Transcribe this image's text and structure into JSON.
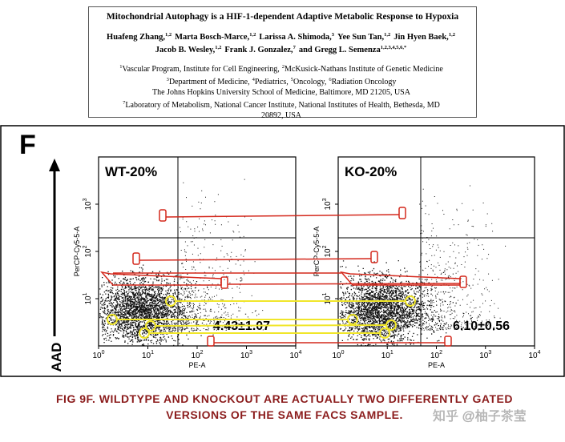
{
  "header": {
    "title": "Mitochondrial Autophagy is a HIF-1-dependent Adaptive Metabolic Response to Hypoxia",
    "authors": [
      [
        {
          "text": "Huafeng Zhang,",
          "sup": "1,2"
        },
        {
          "text": "Marta Bosch-Marce,",
          "sup": "1,2"
        },
        {
          "text": "Larissa A. Shimoda,",
          "sup": "3"
        },
        {
          "text": "Yee Sun Tan,",
          "sup": "1,2"
        },
        {
          "text": "Jin Hyen Baek,",
          "sup": "1,2"
        }
      ],
      [
        {
          "text": "Jacob B. Wesley,",
          "sup": "1,2"
        },
        {
          "text": "Frank J. Gonzalez,",
          "sup": "7"
        },
        {
          "text": "and Gregg L. Semenza",
          "sup": "1,2,3,4,5,6,*"
        }
      ]
    ],
    "affiliations": [
      [
        {
          "sup": "1",
          "text": "Vascular Program, Institute for Cell Engineering,"
        },
        {
          "sup": "2",
          "text": "McKusick-Nathans Institute of Genetic Medicine"
        }
      ],
      [
        {
          "sup": "3",
          "text": "Department of Medicine,"
        },
        {
          "sup": "4",
          "text": "Pediatrics,"
        },
        {
          "sup": "5",
          "text": "Oncology,"
        },
        {
          "sup": "6",
          "text": "Radiation Oncology"
        }
      ],
      [
        {
          "text": "The Johns Hopkins University School of Medicine, Baltimore, MD 21205, USA"
        }
      ],
      [
        {
          "sup": "7",
          "text": "Laboratory of Metabolism, National Cancer Institute, National Institutes of Health, Bethesda, MD"
        }
      ],
      [
        {
          "text": "20892, USA"
        }
      ]
    ]
  },
  "figure": {
    "panel": "F",
    "y_axis_label": "AAD",
    "plots": [
      {
        "label": "WT-20%",
        "value": "4.43±1.07",
        "x_label": "PE-A",
        "y_label": "PerCP-Cy5-5-A",
        "x_ticks": [
          {
            "base": "10",
            "exp": "0"
          },
          {
            "base": "10",
            "exp": "1"
          },
          {
            "base": "10",
            "exp": "2"
          },
          {
            "base": "10",
            "exp": "3"
          },
          {
            "base": "10",
            "exp": "4"
          }
        ],
        "y_ticks": [
          {
            "base": "10",
            "exp": "1"
          },
          {
            "base": "10",
            "exp": "2"
          },
          {
            "base": "10",
            "exp": "3"
          }
        ]
      },
      {
        "label": "KO-20%",
        "value": "6.10±0.56",
        "x_label": "PE-A",
        "y_label": "PerCP-Cy5-5-A",
        "x_ticks": [
          {
            "base": "10",
            "exp": "0"
          },
          {
            "base": "10",
            "exp": "1"
          },
          {
            "base": "10",
            "exp": "2"
          },
          {
            "base": "10",
            "exp": "3"
          },
          {
            "base": "10",
            "exp": "4"
          }
        ],
        "y_ticks": [
          {
            "base": "10",
            "exp": "1"
          },
          {
            "base": "10",
            "exp": "2"
          },
          {
            "base": "10",
            "exp": "3"
          }
        ]
      }
    ]
  },
  "caption": [
    "FIG 9F. WILDTYPE AND KNOCKOUT ARE ACTUALLY TWO DIFFERENTLY GATED",
    "VERSIONS OF THE SAME FACS SAMPLE."
  ],
  "watermark": "知乎 @柚子茶莹"
}
